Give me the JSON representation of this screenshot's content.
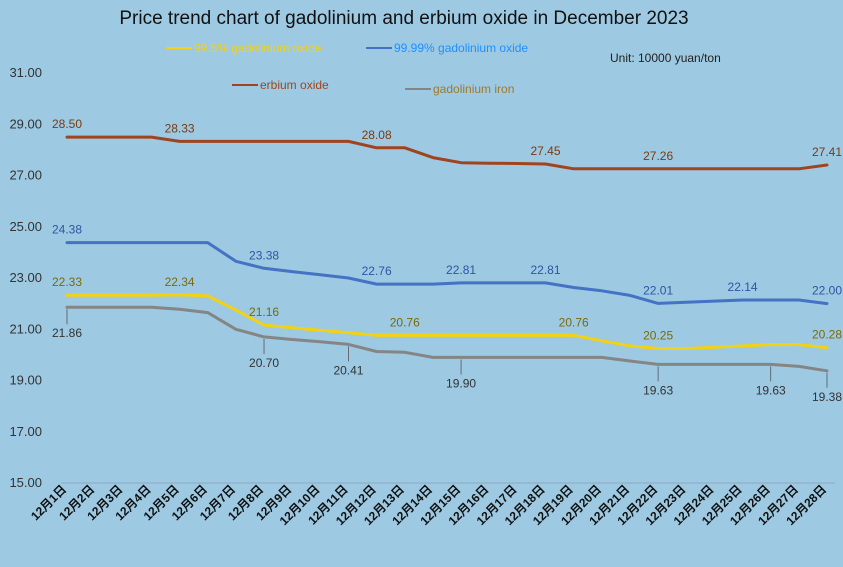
{
  "colors": {
    "background": "#9dc9e2",
    "erbium_oxide": "#a0441f",
    "gd_oxide_9999": "#4472c4",
    "gd_oxide_995": "#f2d214",
    "gadolinium_iron": "#858585",
    "erbium_label": "#7b3a12",
    "gd9999_label": "#2f55a4",
    "gd995_label": "#7a6a0a",
    "gdiron_label": "#333333"
  },
  "legend_text_colors": {
    "gd_oxide_995": "#f2d214",
    "gd_oxide_9999": "#1e90ff",
    "erbium_oxide": "#a0441f",
    "gadolinium_iron": "#a07a2a"
  },
  "chart_data": {
    "type": "line",
    "title": "Price trend chart of gadolinium and erbium oxide in December 2023",
    "unit": "Unit: 10000 yuan/ton",
    "ylim": [
      15,
      31
    ],
    "yticks": [
      "15.00",
      "17.00",
      "19.00",
      "21.00",
      "23.00",
      "25.00",
      "27.00",
      "29.00",
      "31.00"
    ],
    "grid": false,
    "legend": "top",
    "x": [
      "12月1日",
      "12月2日",
      "12月3日",
      "12月4日",
      "12月5日",
      "12月6日",
      "12月7日",
      "12月8日",
      "12月9日",
      "12月10日",
      "12月11日",
      "12月12日",
      "12月13日",
      "12月14日",
      "12月15日",
      "12月16日",
      "12月17日",
      "12月18日",
      "12月19日",
      "12月20日",
      "12月21日",
      "12月22日",
      "12月23日",
      "12月24日",
      "12月25日",
      "12月26日",
      "12月27日",
      "12月28日"
    ],
    "series": [
      {
        "name": "erbium oxide",
        "key": "erbium_oxide",
        "label_color_key": "erbium_label",
        "values": [
          28.5,
          28.5,
          28.5,
          28.5,
          28.33,
          28.33,
          28.33,
          28.33,
          28.33,
          28.33,
          28.33,
          28.08,
          28.08,
          27.7,
          27.5,
          27.48,
          27.47,
          27.45,
          27.26,
          27.26,
          27.26,
          27.26,
          27.26,
          27.26,
          27.26,
          27.26,
          27.26,
          27.41
        ],
        "labels": [
          {
            "index": 0,
            "text": "28.50"
          },
          {
            "index": 4,
            "text": "28.33"
          },
          {
            "index": 11,
            "text": "28.08"
          },
          {
            "index": 17,
            "text": "27.45"
          },
          {
            "index": 21,
            "text": "27.26"
          },
          {
            "index": 27,
            "text": "27.41"
          }
        ]
      },
      {
        "name": "99.99% gadolinium oxide",
        "key": "gd_oxide_9999",
        "label_color_key": "gd9999_label",
        "values": [
          24.38,
          24.38,
          24.38,
          24.38,
          24.38,
          24.38,
          23.65,
          23.38,
          23.25,
          23.13,
          23.0,
          22.76,
          22.76,
          22.76,
          22.81,
          22.81,
          22.81,
          22.81,
          22.63,
          22.5,
          22.32,
          22.01,
          22.05,
          22.1,
          22.14,
          22.14,
          22.14,
          22.0
        ],
        "labels": [
          {
            "index": 0,
            "text": "24.38"
          },
          {
            "index": 7,
            "text": "23.38"
          },
          {
            "index": 11,
            "text": "22.76"
          },
          {
            "index": 14,
            "text": "22.81"
          },
          {
            "index": 17,
            "text": "22.81"
          },
          {
            "index": 21,
            "text": "22.01"
          },
          {
            "index": 24,
            "text": "22.14"
          },
          {
            "index": 27,
            "text": "22.00"
          }
        ]
      },
      {
        "name": "99.5% gadolinium oxide",
        "key": "gd_oxide_995",
        "label_color_key": "gd995_label",
        "values": [
          22.33,
          22.33,
          22.33,
          22.33,
          22.34,
          22.3,
          21.75,
          21.16,
          21.06,
          20.96,
          20.86,
          20.76,
          20.76,
          20.76,
          20.76,
          20.76,
          20.76,
          20.76,
          20.76,
          20.55,
          20.35,
          20.25,
          20.25,
          20.3,
          20.35,
          20.4,
          20.4,
          20.28
        ],
        "labels": [
          {
            "index": 0,
            "text": "22.33"
          },
          {
            "index": 4,
            "text": "22.34"
          },
          {
            "index": 7,
            "text": "21.16"
          },
          {
            "index": 12,
            "text": "20.76"
          },
          {
            "index": 18,
            "text": "20.76"
          },
          {
            "index": 21,
            "text": "20.25"
          },
          {
            "index": 27,
            "text": "20.28"
          }
        ]
      },
      {
        "name": "gadolinium iron",
        "key": "gadolinium_iron",
        "label_color_key": "gdiron_label",
        "values": [
          21.86,
          21.86,
          21.86,
          21.86,
          21.78,
          21.65,
          21.0,
          20.7,
          20.6,
          20.51,
          20.41,
          20.13,
          20.1,
          19.9,
          19.9,
          19.9,
          19.9,
          19.9,
          19.9,
          19.9,
          19.76,
          19.63,
          19.63,
          19.63,
          19.63,
          19.63,
          19.55,
          19.38
        ],
        "labels": [
          {
            "index": 0,
            "text": "21.86"
          },
          {
            "index": 7,
            "text": "20.70"
          },
          {
            "index": 10,
            "text": "20.41"
          },
          {
            "index": 14,
            "text": "19.90"
          },
          {
            "index": 21,
            "text": "19.63"
          },
          {
            "index": 25,
            "text": "19.63"
          },
          {
            "index": 27,
            "text": "19.38"
          }
        ]
      }
    ]
  },
  "legend_items": [
    {
      "key": "gd_oxide_995",
      "text": "99.5% gadolinium oxide"
    },
    {
      "key": "gd_oxide_9999",
      "text": "99.99% gadolinium oxide"
    },
    {
      "key": "erbium_oxide",
      "text": "erbium oxide"
    },
    {
      "key": "gadolinium_iron",
      "text": "gadolinium iron"
    }
  ]
}
